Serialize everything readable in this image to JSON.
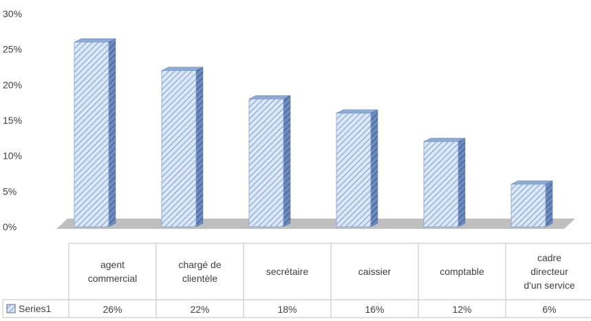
{
  "chart_data": {
    "type": "bar",
    "categories": [
      [
        "agent",
        "commercial"
      ],
      [
        "chargé de",
        "clientèle"
      ],
      [
        "secrétaire"
      ],
      [
        "caissier"
      ],
      [
        "comptable"
      ],
      [
        "cadre",
        "directeur",
        "d'un service"
      ]
    ],
    "series": [
      {
        "name": "Series1",
        "values": [
          0.26,
          0.22,
          0.18,
          0.16,
          0.12,
          0.06
        ],
        "value_labels": [
          "26%",
          "22%",
          "18%",
          "16%",
          "12%",
          "6%"
        ]
      }
    ],
    "y_ticks": [
      "0%",
      "5%",
      "10%",
      "15%",
      "20%",
      "25%",
      "30%"
    ],
    "ylim": [
      0,
      0.3
    ],
    "style": "3d-column-with-data-table",
    "colors": {
      "bar_front": "#c8d8f0",
      "bar_hatch": "#7f9fd0",
      "bar_side": "#4f6f9f",
      "bar_top": "#8faad4",
      "floor": "#bfbfbf"
    }
  }
}
